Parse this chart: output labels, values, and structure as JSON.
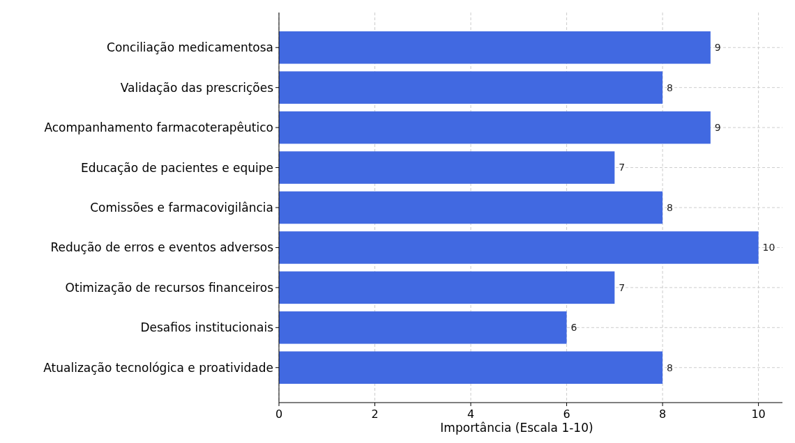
{
  "chart_data": {
    "type": "bar",
    "orientation": "horizontal",
    "xlabel": "Importância (Escala 1-10)",
    "categories": [
      "Conciliação medicamentosa",
      "Validação das prescrições",
      "Acompanhamento farmacoterapêutico",
      "Educação de pacientes e equipe",
      "Comissões e farmacovigilância",
      "Redução de erros e eventos adversos",
      "Otimização de recursos financeiros",
      "Desafios institucionais",
      "Atualização tecnológica e proatividade"
    ],
    "values": [
      9,
      8,
      9,
      7,
      8,
      10,
      7,
      6,
      8
    ],
    "color": "#4169e1",
    "xlim": [
      0,
      10.5
    ],
    "xticks": [
      0,
      2,
      4,
      6,
      8,
      10
    ],
    "grid": true,
    "data_labels": true
  }
}
